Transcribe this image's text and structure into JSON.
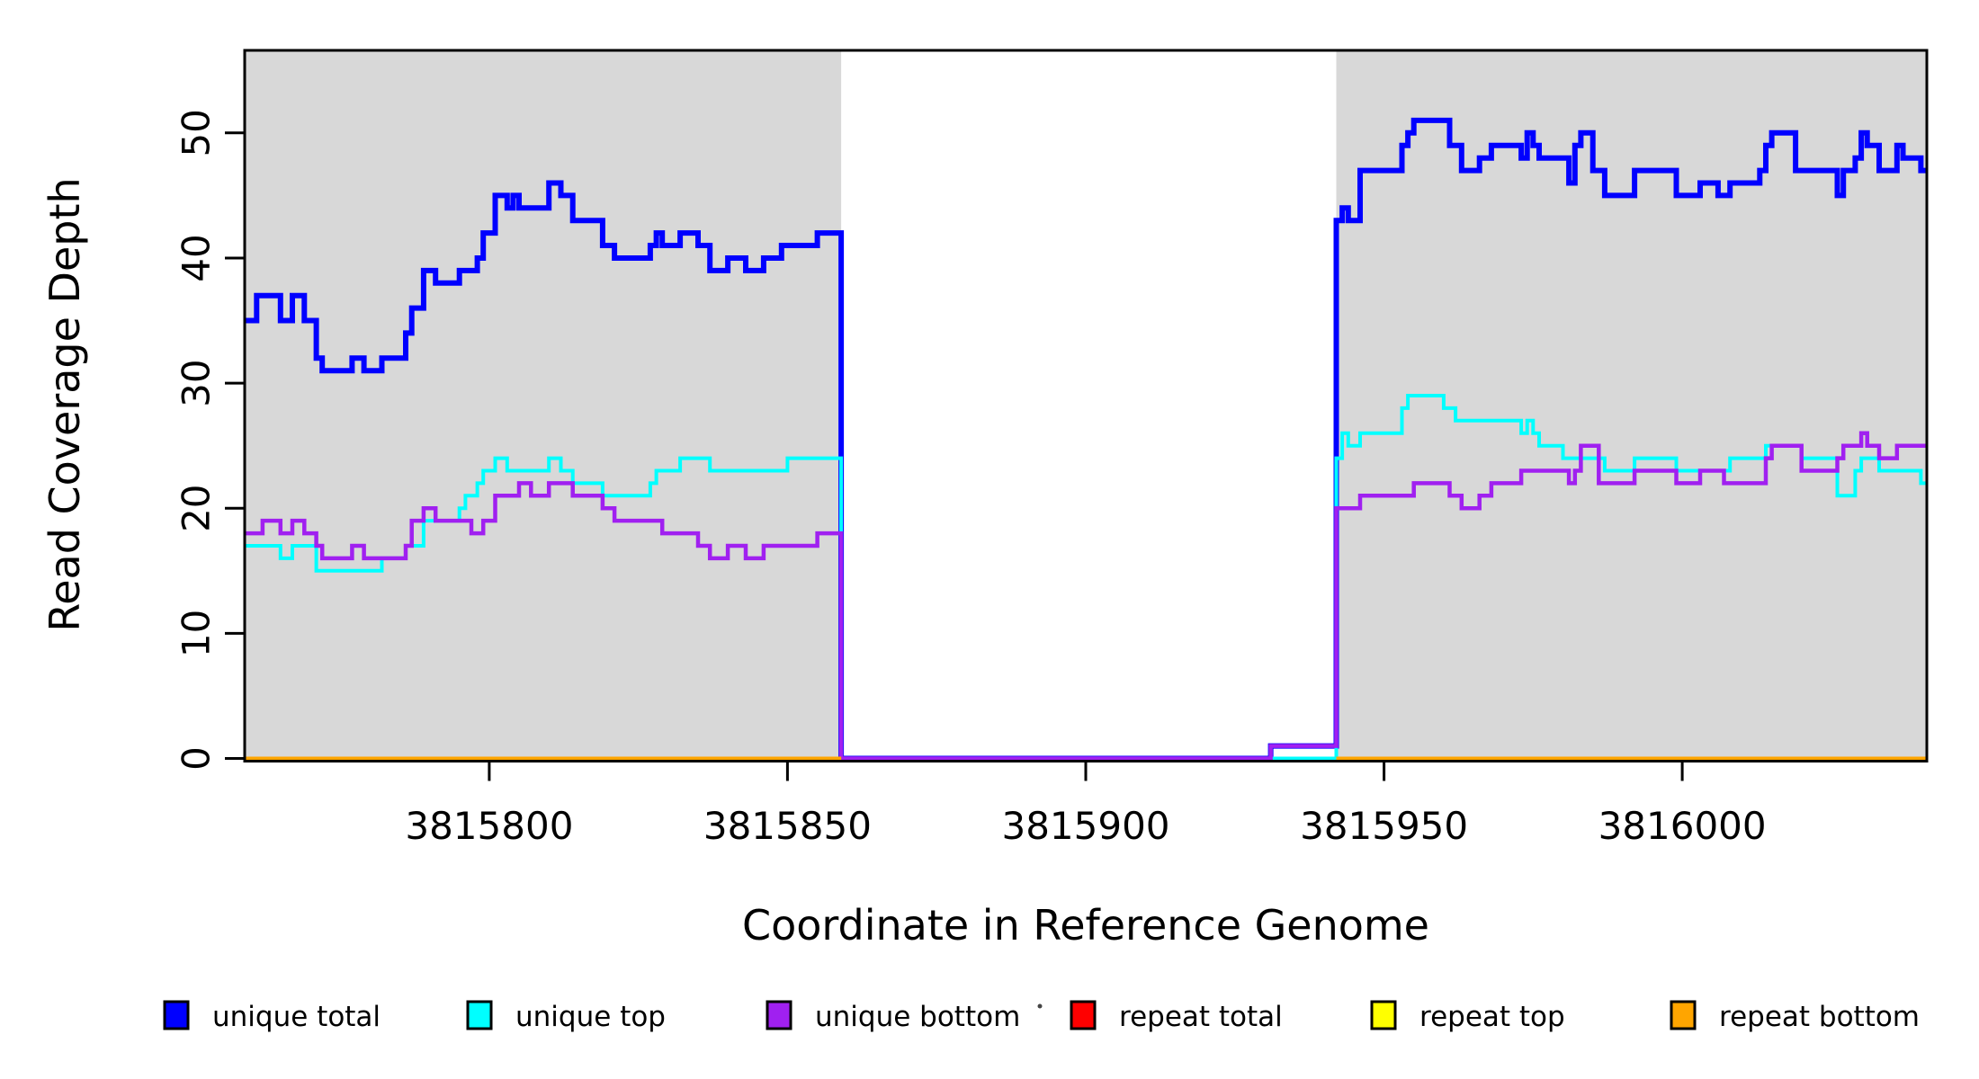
{
  "chart_data": {
    "type": "line",
    "subtype": "step-coverage",
    "title": "",
    "xlabel": "Coordinate in Reference Genome",
    "ylabel": "Read Coverage Depth",
    "xlim": [
      3815759,
      3816041
    ],
    "ylim": [
      0,
      56.6
    ],
    "grid": "off",
    "legend_position": "bottom",
    "x_ticks": [
      3815800,
      3815850,
      3815900,
      3815950,
      3816000
    ],
    "x_tick_labels": [
      "3815800",
      "3815850",
      "3815900",
      "3815950",
      "3816000"
    ],
    "y_ticks": [
      0,
      10,
      20,
      30,
      40,
      50
    ],
    "y_tick_labels": [
      "0",
      "10",
      "20",
      "30",
      "40",
      "50"
    ],
    "shaded_regions": [
      {
        "x0": 3815759,
        "x1": 3815859,
        "color": "#D8D8D8"
      },
      {
        "x0": 3815942,
        "x1": 3816041,
        "color": "#D8D8D8"
      }
    ],
    "series": [
      {
        "name": "unique total",
        "color": "#0000FF",
        "width": 6,
        "steps": [
          [
            3815759,
            35
          ],
          [
            3815761,
            37
          ],
          [
            3815765,
            35
          ],
          [
            3815767,
            37
          ],
          [
            3815769,
            35
          ],
          [
            3815771,
            32
          ],
          [
            3815772,
            31
          ],
          [
            3815777,
            32
          ],
          [
            3815779,
            31
          ],
          [
            3815782,
            32
          ],
          [
            3815786,
            34
          ],
          [
            3815787,
            36
          ],
          [
            3815789,
            39
          ],
          [
            3815791,
            38
          ],
          [
            3815795,
            39
          ],
          [
            3815798,
            40
          ],
          [
            3815799,
            42
          ],
          [
            3815801,
            45
          ],
          [
            3815803,
            44
          ],
          [
            3815804,
            45
          ],
          [
            3815805,
            44
          ],
          [
            3815810,
            46
          ],
          [
            3815812,
            45
          ],
          [
            3815814,
            43
          ],
          [
            3815819,
            41
          ],
          [
            3815821,
            40
          ],
          [
            3815827,
            41
          ],
          [
            3815828,
            42
          ],
          [
            3815829,
            41
          ],
          [
            3815832,
            42
          ],
          [
            3815835,
            41
          ],
          [
            3815837,
            39
          ],
          [
            3815840,
            40
          ],
          [
            3815843,
            39
          ],
          [
            3815846,
            40
          ],
          [
            3815849,
            41
          ],
          [
            3815855,
            42
          ],
          [
            3815859,
            0
          ],
          [
            3815931,
            1
          ],
          [
            3815942,
            43
          ],
          [
            3815943,
            44
          ],
          [
            3815944,
            43
          ],
          [
            3815946,
            47
          ],
          [
            3815953,
            49
          ],
          [
            3815954,
            50
          ],
          [
            3815955,
            51
          ],
          [
            3815961,
            49
          ],
          [
            3815963,
            47
          ],
          [
            3815966,
            48
          ],
          [
            3815968,
            49
          ],
          [
            3815973,
            48
          ],
          [
            3815974,
            50
          ],
          [
            3815975,
            49
          ],
          [
            3815976,
            48
          ],
          [
            3815981,
            46
          ],
          [
            3815982,
            49
          ],
          [
            3815983,
            50
          ],
          [
            3815985,
            47
          ],
          [
            3815987,
            45
          ],
          [
            3815992,
            47
          ],
          [
            3815999,
            45
          ],
          [
            3816003,
            46
          ],
          [
            3816006,
            45
          ],
          [
            3816008,
            46
          ],
          [
            3816013,
            47
          ],
          [
            3816014,
            49
          ],
          [
            3816015,
            50
          ],
          [
            3816019,
            47
          ],
          [
            3816026,
            45
          ],
          [
            3816027,
            47
          ],
          [
            3816029,
            48
          ],
          [
            3816030,
            50
          ],
          [
            3816031,
            49
          ],
          [
            3816033,
            47
          ],
          [
            3816036,
            49
          ],
          [
            3816037,
            48
          ],
          [
            3816040,
            47
          ]
        ]
      },
      {
        "name": "unique top",
        "color": "#00FFFF",
        "width": 4,
        "steps": [
          [
            3815759,
            17
          ],
          [
            3815765,
            16
          ],
          [
            3815767,
            17
          ],
          [
            3815771,
            15
          ],
          [
            3815782,
            16
          ],
          [
            3815786,
            17
          ],
          [
            3815789,
            19
          ],
          [
            3815795,
            20
          ],
          [
            3815796,
            21
          ],
          [
            3815798,
            22
          ],
          [
            3815799,
            23
          ],
          [
            3815801,
            24
          ],
          [
            3815803,
            23
          ],
          [
            3815810,
            24
          ],
          [
            3815812,
            23
          ],
          [
            3815814,
            22
          ],
          [
            3815819,
            21
          ],
          [
            3815827,
            22
          ],
          [
            3815828,
            23
          ],
          [
            3815832,
            24
          ],
          [
            3815837,
            23
          ],
          [
            3815850,
            24
          ],
          [
            3815859,
            0
          ],
          [
            3815942,
            24
          ],
          [
            3815943,
            26
          ],
          [
            3815944,
            25
          ],
          [
            3815946,
            26
          ],
          [
            3815953,
            28
          ],
          [
            3815954,
            29
          ],
          [
            3815960,
            28
          ],
          [
            3815962,
            27
          ],
          [
            3815973,
            26
          ],
          [
            3815974,
            27
          ],
          [
            3815975,
            26
          ],
          [
            3815976,
            25
          ],
          [
            3815980,
            24
          ],
          [
            3815987,
            23
          ],
          [
            3815992,
            24
          ],
          [
            3815999,
            23
          ],
          [
            3816008,
            24
          ],
          [
            3816014,
            25
          ],
          [
            3816020,
            24
          ],
          [
            3816026,
            21
          ],
          [
            3816029,
            23
          ],
          [
            3816030,
            24
          ],
          [
            3816033,
            23
          ],
          [
            3816040,
            22
          ]
        ]
      },
      {
        "name": "unique bottom",
        "color": "#A020F0",
        "width": 4.5,
        "steps": [
          [
            3815759,
            18
          ],
          [
            3815762,
            19
          ],
          [
            3815765,
            18
          ],
          [
            3815767,
            19
          ],
          [
            3815769,
            18
          ],
          [
            3815771,
            17
          ],
          [
            3815772,
            16
          ],
          [
            3815777,
            17
          ],
          [
            3815779,
            16
          ],
          [
            3815786,
            17
          ],
          [
            3815787,
            19
          ],
          [
            3815789,
            20
          ],
          [
            3815791,
            19
          ],
          [
            3815797,
            18
          ],
          [
            3815799,
            19
          ],
          [
            3815801,
            21
          ],
          [
            3815805,
            22
          ],
          [
            3815807,
            21
          ],
          [
            3815810,
            22
          ],
          [
            3815814,
            21
          ],
          [
            3815819,
            20
          ],
          [
            3815821,
            19
          ],
          [
            3815829,
            18
          ],
          [
            3815835,
            17
          ],
          [
            3815837,
            16
          ],
          [
            3815840,
            17
          ],
          [
            3815843,
            16
          ],
          [
            3815846,
            17
          ],
          [
            3815855,
            18
          ],
          [
            3815859,
            0
          ],
          [
            3815931,
            1
          ],
          [
            3815942,
            20
          ],
          [
            3815946,
            21
          ],
          [
            3815955,
            22
          ],
          [
            3815961,
            21
          ],
          [
            3815963,
            20
          ],
          [
            3815966,
            21
          ],
          [
            3815968,
            22
          ],
          [
            3815973,
            23
          ],
          [
            3815981,
            22
          ],
          [
            3815982,
            23
          ],
          [
            3815983,
            25
          ],
          [
            3815986,
            22
          ],
          [
            3815992,
            23
          ],
          [
            3815999,
            22
          ],
          [
            3816003,
            23
          ],
          [
            3816007,
            22
          ],
          [
            3816014,
            24
          ],
          [
            3816015,
            25
          ],
          [
            3816020,
            23
          ],
          [
            3816026,
            24
          ],
          [
            3816027,
            25
          ],
          [
            3816030,
            26
          ],
          [
            3816031,
            25
          ],
          [
            3816033,
            24
          ],
          [
            3816036,
            25
          ]
        ]
      },
      {
        "name": "repeat total",
        "color": "#FF0000",
        "width": 4,
        "steps": [
          [
            3815759,
            0
          ],
          [
            3815859,
            null
          ],
          [
            3815942,
            0
          ]
        ]
      },
      {
        "name": "repeat top",
        "color": "#FFFF00",
        "width": 4,
        "steps": [
          [
            3815759,
            0
          ],
          [
            3815859,
            null
          ],
          [
            3815942,
            0
          ]
        ]
      },
      {
        "name": "repeat bottom",
        "color": "#FFA500",
        "width": 4,
        "steps": [
          [
            3815759,
            0
          ],
          [
            3815859,
            null
          ],
          [
            3815942,
            0
          ]
        ]
      }
    ]
  },
  "axes": {
    "x": {
      "label": "Coordinate in Reference Genome"
    },
    "y": {
      "label": "Read Coverage Depth"
    }
  },
  "legend": {
    "items": [
      {
        "label": "unique total",
        "color": "#0000FF"
      },
      {
        "label": "unique top",
        "color": "#00FFFF"
      },
      {
        "label": "unique bottom",
        "color": "#A020F0"
      },
      {
        "label": "repeat total",
        "color": "#FF0000"
      },
      {
        "label": "repeat top",
        "color": "#FFFF00"
      },
      {
        "label": "repeat bottom",
        "color": "#FFA500"
      }
    ],
    "stray_dot": "·"
  },
  "colors": {
    "background": "#FFFFFF",
    "shading": "#D8D8D8",
    "axis": "#000000"
  }
}
